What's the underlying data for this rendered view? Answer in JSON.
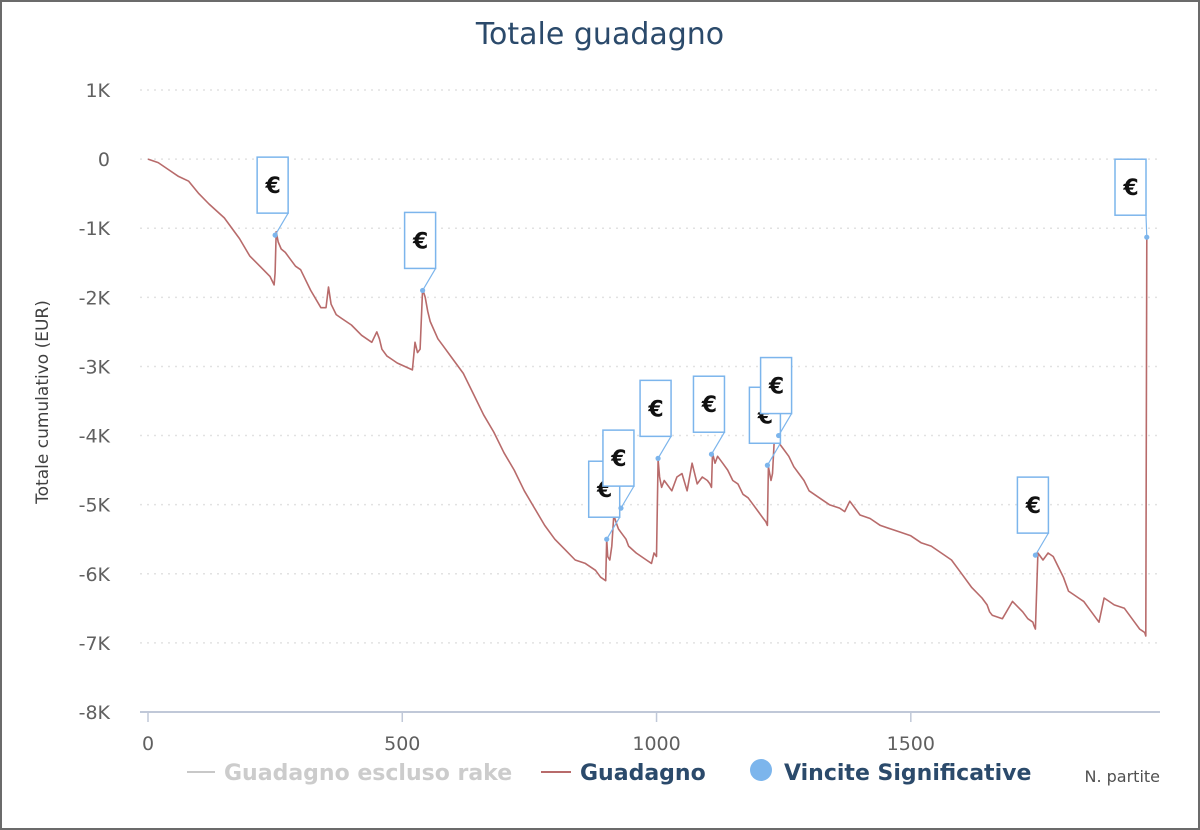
{
  "chart_data": {
    "type": "line",
    "title": "Totale guadagno",
    "xlabel": "N. partite",
    "ylabel": "Totale cumulativo (EUR)",
    "xlim": [
      0,
      1990
    ],
    "ylim": [
      -8000,
      1000
    ],
    "x_ticks": [
      0,
      500,
      1000,
      1500
    ],
    "x_tick_labels": [
      "0",
      "500",
      "1000",
      "1500"
    ],
    "y_ticks": [
      1000,
      0,
      -1000,
      -2000,
      -3000,
      -4000,
      -5000,
      -6000,
      -7000,
      -8000
    ],
    "y_tick_labels": [
      "1K",
      "0",
      "-1K",
      "-2K",
      "-3K",
      "-4K",
      "-5K",
      "-6K",
      "-7K",
      "-8K"
    ],
    "grid": "horizontal dotted",
    "legend_position": "bottom",
    "legend": [
      {
        "name": "Guadagno escluso rake",
        "color": "#c8c8c8",
        "marker": "line",
        "visible": false
      },
      {
        "name": "Guadagno",
        "color": "#b86b6b",
        "marker": "line",
        "visible": true
      },
      {
        "name": "Vincite Significative",
        "color": "#7cb5ec",
        "marker": "circle",
        "visible": true
      }
    ],
    "series": [
      {
        "name": "Guadagno",
        "color": "#b86b6b",
        "x": [
          0,
          20,
          40,
          60,
          80,
          100,
          120,
          150,
          180,
          200,
          220,
          240,
          248,
          250,
          252,
          256,
          262,
          270,
          280,
          290,
          300,
          320,
          340,
          350,
          355,
          360,
          370,
          380,
          400,
          420,
          440,
          450,
          455,
          460,
          470,
          480,
          490,
          520,
          525,
          530,
          535,
          540,
          545,
          550,
          555,
          570,
          580,
          600,
          620,
          640,
          660,
          680,
          700,
          720,
          740,
          760,
          780,
          800,
          820,
          840,
          860,
          880,
          890,
          900,
          902,
          904,
          908,
          912,
          916,
          920,
          925,
          930,
          935,
          940,
          945,
          960,
          980,
          990,
          995,
          1000,
          1003,
          1006,
          1010,
          1015,
          1020,
          1030,
          1040,
          1050,
          1060,
          1070,
          1080,
          1090,
          1100,
          1105,
          1108,
          1110,
          1115,
          1120,
          1130,
          1140,
          1150,
          1160,
          1170,
          1180,
          1190,
          1200,
          1210,
          1215,
          1218,
          1220,
          1225,
          1228,
          1232,
          1236,
          1240,
          1250,
          1260,
          1270,
          1280,
          1290,
          1300,
          1320,
          1340,
          1360,
          1370,
          1380,
          1400,
          1420,
          1440,
          1460,
          1480,
          1500,
          1520,
          1540,
          1560,
          1580,
          1600,
          1620,
          1640,
          1650,
          1655,
          1660,
          1680,
          1700,
          1720,
          1730,
          1740,
          1742,
          1745,
          1750,
          1760,
          1770,
          1780,
          1790,
          1800,
          1810,
          1820,
          1830,
          1840,
          1850,
          1860,
          1870,
          1880,
          1890,
          1900,
          1920,
          1940,
          1950,
          1960,
          1962,
          1964,
          1966
        ],
        "values": [
          0,
          -50,
          -150,
          -250,
          -320,
          -500,
          -650,
          -850,
          -1150,
          -1400,
          -1550,
          -1700,
          -1820,
          -1650,
          -1050,
          -1200,
          -1300,
          -1350,
          -1450,
          -1550,
          -1600,
          -1900,
          -2150,
          -2150,
          -1850,
          -2100,
          -2250,
          -2300,
          -2400,
          -2550,
          -2650,
          -2500,
          -2600,
          -2750,
          -2850,
          -2900,
          -2950,
          -3050,
          -2650,
          -2800,
          -2750,
          -1880,
          -2000,
          -2200,
          -2350,
          -2600,
          -2700,
          -2900,
          -3100,
          -3400,
          -3700,
          -3950,
          -4250,
          -4500,
          -4800,
          -5050,
          -5300,
          -5500,
          -5650,
          -5800,
          -5850,
          -5950,
          -6050,
          -6100,
          -5500,
          -5750,
          -5800,
          -5600,
          -5150,
          -5250,
          -5350,
          -5400,
          -5450,
          -5500,
          -5600,
          -5700,
          -5800,
          -5850,
          -5700,
          -5750,
          -4350,
          -4600,
          -4750,
          -4650,
          -4700,
          -4800,
          -4600,
          -4550,
          -4800,
          -4400,
          -4700,
          -4600,
          -4650,
          -4700,
          -4750,
          -4250,
          -4400,
          -4300,
          -4400,
          -4500,
          -4650,
          -4700,
          -4850,
          -4900,
          -5000,
          -5100,
          -5200,
          -5250,
          -5300,
          -4450,
          -4650,
          -4550,
          -4000,
          -4050,
          -4100,
          -4200,
          -4300,
          -4450,
          -4550,
          -4650,
          -4800,
          -4900,
          -5000,
          -5050,
          -5100,
          -4950,
          -5150,
          -5200,
          -5300,
          -5350,
          -5400,
          -5450,
          -5550,
          -5600,
          -5700,
          -5800,
          -6000,
          -6200,
          -6350,
          -6450,
          -6550,
          -6600,
          -6650,
          -6400,
          -6550,
          -6650,
          -6700,
          -6750,
          -6800,
          -5700,
          -5800,
          -5700,
          -5750,
          -5900,
          -6050,
          -6250,
          -6300,
          -6350,
          -6400,
          -6500,
          -6600,
          -6700,
          -6350,
          -6400,
          -6450,
          -6500,
          -6700,
          -6800,
          -6850,
          -6900,
          -1120,
          -1150
        ]
      }
    ],
    "markers": {
      "name": "Vincite Significative",
      "symbol": "€",
      "points": [
        {
          "x": 250,
          "y": -1100
        },
        {
          "x": 540,
          "y": -1900
        },
        {
          "x": 902,
          "y": -5500
        },
        {
          "x": 930,
          "y": -5050
        },
        {
          "x": 1003,
          "y": -4330
        },
        {
          "x": 1108,
          "y": -4270
        },
        {
          "x": 1218,
          "y": -4430
        },
        {
          "x": 1240,
          "y": -4000
        },
        {
          "x": 1745,
          "y": -5730
        },
        {
          "x": 1964,
          "y": -1130
        }
      ]
    }
  }
}
